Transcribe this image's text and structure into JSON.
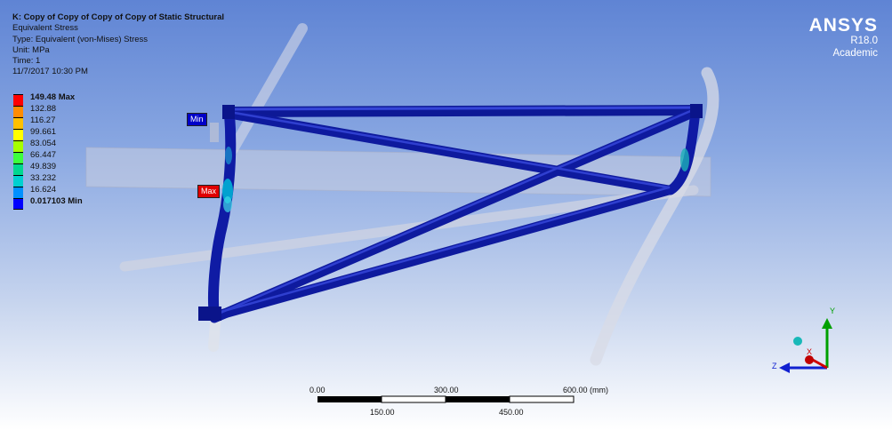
{
  "header": {
    "title": "K: Copy of Copy of Copy of Copy of Static Structural",
    "result": "Equivalent Stress",
    "type": "Type: Equivalent (von-Mises) Stress",
    "unit": "Unit: MPa",
    "time": "Time: 1",
    "date": "11/7/2017 10:30 PM"
  },
  "brand": {
    "name": "ANSYS",
    "version": "R18.0",
    "edition": "Academic"
  },
  "legend": [
    {
      "label": "149.48 Max",
      "color": "#ff0000",
      "bold": true
    },
    {
      "label": "132.88",
      "color": "#ff8c00",
      "bold": false
    },
    {
      "label": "116.27",
      "color": "#ffc000",
      "bold": false
    },
    {
      "label": "99.661",
      "color": "#ffff00",
      "bold": false
    },
    {
      "label": "83.054",
      "color": "#a6ff00",
      "bold": false
    },
    {
      "label": "66.447",
      "color": "#3cff3c",
      "bold": false
    },
    {
      "label": "49.839",
      "color": "#00d890",
      "bold": false
    },
    {
      "label": "33.232",
      "color": "#00d0d0",
      "bold": false
    },
    {
      "label": "16.624",
      "color": "#0090ff",
      "bold": false
    },
    {
      "label": "0.017103 Min",
      "color": "#0000ff",
      "bold": true
    }
  ],
  "probes": {
    "min_label": "Min",
    "max_label": "Max"
  },
  "scale": {
    "top_labels": [
      "0.00",
      "300.00",
      "600.00 (mm)"
    ],
    "bottom_labels": [
      "150.00",
      "450.00"
    ]
  },
  "triad": {
    "x_label": "X",
    "y_label": "Y",
    "z_label": "Z"
  }
}
